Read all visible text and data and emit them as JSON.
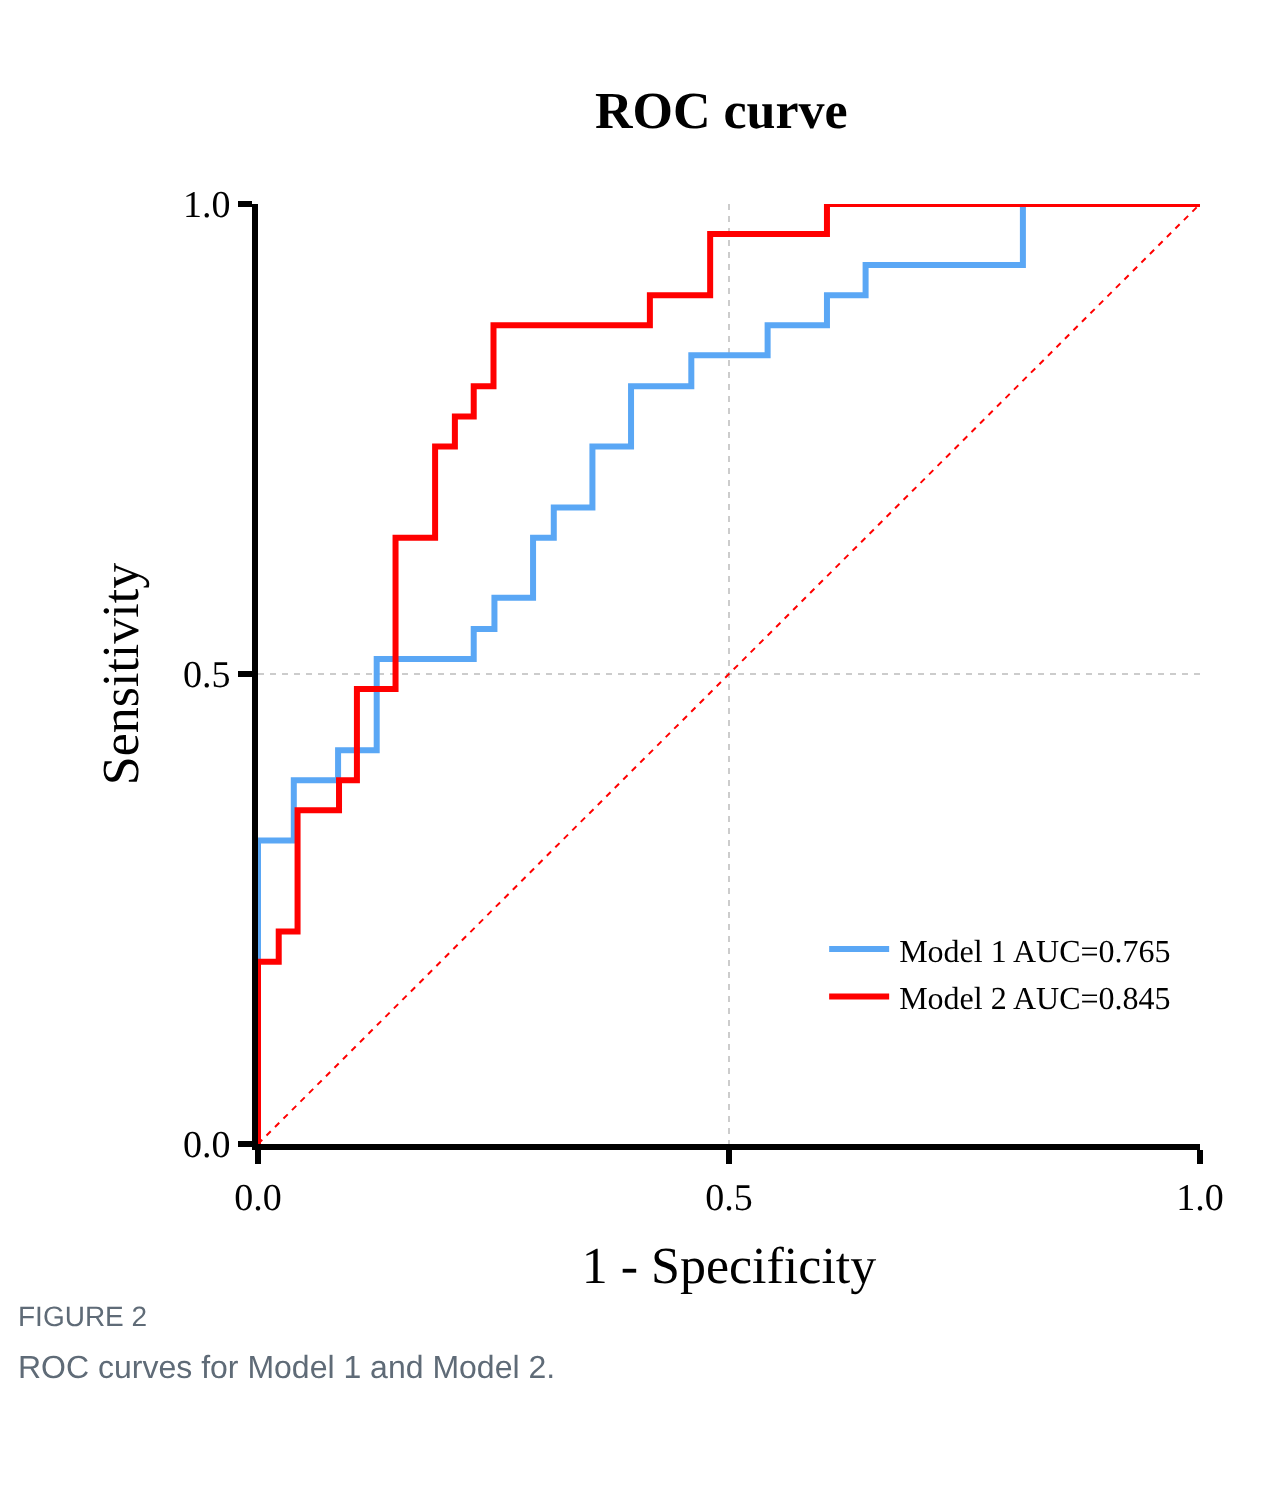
{
  "chart_data": {
    "type": "step",
    "title": "ROC curve",
    "xlabel": "1 - Specificity",
    "ylabel": "Sensitivity",
    "xlim": [
      0,
      1
    ],
    "ylim": [
      0,
      1
    ],
    "xticks": [
      {
        "value": 0,
        "label": "0.0"
      },
      0.5,
      {
        "value": 1,
        "label": "1.0"
      }
    ],
    "yticks": [
      {
        "value": 0,
        "label": "0.0"
      },
      0.5,
      {
        "value": 1,
        "label": "1.0"
      }
    ],
    "grid": true,
    "legend": "bottom right",
    "marker": "none",
    "series": [
      {
        "name": "Model 1 AUC=0.765",
        "color": "#5aa7f5",
        "x": [
          0,
          0,
          0.038,
          0.038,
          0.085,
          0.085,
          0.126,
          0.126,
          0.229,
          0.229,
          0.251,
          0.251,
          0.292,
          0.292,
          0.314,
          0.314,
          0.355,
          0.355,
          0.396,
          0.396,
          0.46,
          0.46,
          0.541,
          0.541,
          0.604,
          0.604,
          0.645,
          0.645,
          0.812,
          0.812
        ],
        "values": [
          0,
          0.323,
          0.323,
          0.387,
          0.387,
          0.419,
          0.419,
          0.516,
          0.516,
          0.548,
          0.548,
          0.581,
          0.581,
          0.645,
          0.645,
          0.677,
          0.677,
          0.742,
          0.742,
          0.806,
          0.806,
          0.839,
          0.839,
          0.871,
          0.871,
          0.903,
          0.903,
          0.935,
          0.935,
          1
        ]
      },
      {
        "name": "Model 2 AUC=0.845",
        "color": "#ff0000",
        "x": [
          0,
          0,
          0.022,
          0.022,
          0.042,
          0.042,
          0.086,
          0.086,
          0.105,
          0.105,
          0.146,
          0.146,
          0.188,
          0.188,
          0.209,
          0.209,
          0.229,
          0.229,
          0.25,
          0.25,
          0.416,
          0.416,
          0.48,
          0.48,
          0.604,
          0.604,
          1
        ],
        "values": [
          0,
          0.194,
          0.194,
          0.226,
          0.226,
          0.355,
          0.355,
          0.387,
          0.387,
          0.484,
          0.484,
          0.645,
          0.645,
          0.742,
          0.742,
          0.774,
          0.774,
          0.806,
          0.806,
          0.871,
          0.871,
          0.903,
          0.903,
          0.968,
          0.968,
          1,
          1
        ]
      },
      {
        "type": "line",
        "line_style": "dotted",
        "color": "#ff0000",
        "x": [
          0,
          1
        ],
        "values": [
          0,
          1
        ]
      }
    ],
    "annotations": [
      "FIGURE 2",
      "ROC curves for Model 1 and Model 2."
    ]
  }
}
